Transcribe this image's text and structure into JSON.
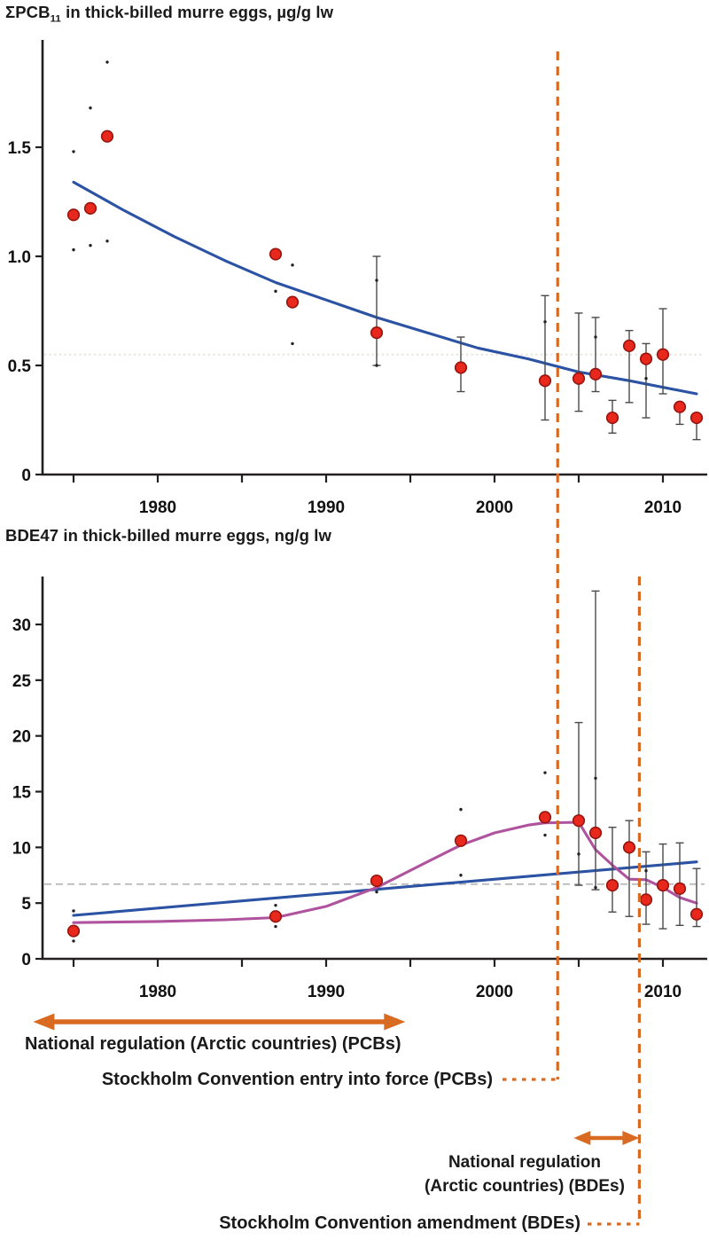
{
  "figure_titles": {
    "top": {
      "prefix": "ΣPCB",
      "subscript": "11",
      "suffix": " in thick-billed murre eggs, µg/g lw"
    },
    "bottom": "BDE47 in thick-billed murre eggs, ng/g lw"
  },
  "colors": {
    "point_fill": "#e8271d",
    "point_stroke": "#96150e",
    "trend_blue": "#2b52a3",
    "loess_magenta": "#b0539e",
    "regulatory_orange": "#d96a22",
    "error_bar": "#4a4a4a",
    "minor_dot": "#222222",
    "axis": "#231f20",
    "tick_text": "#111111",
    "ref_dotted_top": "#e7e3d9",
    "ref_dashed_bottom": "#b5b5b5"
  },
  "chart_data": [
    {
      "type": "scatter",
      "title": "ΣPCB11 in thick-billed murre eggs, µg/g lw",
      "xlabel": "",
      "ylabel": "",
      "x_range": [
        1973,
        2013.7
      ],
      "ylim": [
        0,
        1.95
      ],
      "x_ticks": [
        1975,
        1980,
        1985,
        1990,
        1995,
        2000,
        2005,
        2010
      ],
      "x_tick_labels": [
        "",
        "1980",
        "",
        "1990",
        "",
        "2000",
        "",
        "2010"
      ],
      "y_ticks": [
        0,
        0.5,
        1.0,
        1.5
      ],
      "y_tick_labels": [
        "0",
        "0.5",
        "1.0",
        "1.5"
      ],
      "reference_line": {
        "value": 0.55,
        "style": "dotted"
      },
      "series": [
        {
          "name": "annual mean concentration",
          "style": "red-point",
          "points": [
            [
              1975,
              1.19
            ],
            [
              1976,
              1.22
            ],
            [
              1977,
              1.55
            ],
            [
              1987,
              1.01
            ],
            [
              1988,
              0.79
            ],
            [
              1993,
              0.65
            ],
            [
              1998,
              0.49
            ],
            [
              2003,
              0.43
            ],
            [
              2005,
              0.44
            ],
            [
              2006,
              0.46
            ],
            [
              2007,
              0.26
            ],
            [
              2008,
              0.59
            ],
            [
              2009,
              0.53
            ],
            [
              2010,
              0.55
            ],
            [
              2011,
              0.31
            ],
            [
              2012,
              0.26
            ]
          ]
        },
        {
          "name": "individual samples",
          "style": "small-dot",
          "points": [
            [
              1975,
              1.48
            ],
            [
              1975,
              1.03
            ],
            [
              1976,
              1.68
            ],
            [
              1976,
              1.05
            ],
            [
              1977,
              1.89
            ],
            [
              1977,
              1.07
            ],
            [
              1987,
              0.84
            ],
            [
              1988,
              0.96
            ],
            [
              1988,
              0.6
            ],
            [
              1993,
              0.89
            ],
            [
              1993,
              0.5
            ],
            [
              2003,
              0.7
            ],
            [
              2006,
              0.63
            ],
            [
              2009,
              0.44
            ]
          ]
        },
        {
          "name": "exponential decline trend",
          "style": "blue-line",
          "points": [
            [
              1975,
              1.34
            ],
            [
              1978,
              1.21
            ],
            [
              1981,
              1.09
            ],
            [
              1984,
              0.98
            ],
            [
              1987,
              0.88
            ],
            [
              1990,
              0.8
            ],
            [
              1993,
              0.72
            ],
            [
              1996,
              0.65
            ],
            [
              1999,
              0.58
            ],
            [
              2002,
              0.53
            ],
            [
              2005,
              0.47
            ],
            [
              2008,
              0.43
            ],
            [
              2012,
              0.37
            ]
          ]
        }
      ],
      "error_bars": [
        [
          1993,
          0.5,
          1.0
        ],
        [
          1998,
          0.38,
          0.63
        ],
        [
          2003,
          0.25,
          0.82
        ],
        [
          2005,
          0.29,
          0.74
        ],
        [
          2006,
          0.38,
          0.72
        ],
        [
          2007,
          0.19,
          0.34
        ],
        [
          2008,
          0.33,
          0.66
        ],
        [
          2009,
          0.26,
          0.6
        ],
        [
          2010,
          0.37,
          0.76
        ],
        [
          2011,
          0.23,
          0.33
        ],
        [
          2012,
          0.16,
          0.28
        ]
      ]
    },
    {
      "type": "scatter",
      "title": "BDE47 in thick-billed murre eggs, ng/g lw",
      "xlabel": "",
      "ylabel": "",
      "x_range": [
        1973,
        2013.7
      ],
      "ylim": [
        0,
        34
      ],
      "x_ticks": [
        1975,
        1980,
        1985,
        1990,
        1995,
        2000,
        2005,
        2010
      ],
      "x_tick_labels": [
        "",
        "1980",
        "",
        "1990",
        "",
        "2000",
        "",
        "2010"
      ],
      "y_ticks": [
        0,
        5,
        10,
        15,
        20,
        25,
        30
      ],
      "y_tick_labels": [
        "0",
        "5",
        "10",
        "15",
        "20",
        "25",
        "30"
      ],
      "reference_line": {
        "value": 6.7,
        "style": "dashed"
      },
      "series": [
        {
          "name": "annual mean concentration",
          "style": "red-point",
          "points": [
            [
              1975,
              2.5
            ],
            [
              1987,
              3.8
            ],
            [
              1993,
              7.0
            ],
            [
              1998,
              10.6
            ],
            [
              2003,
              12.7
            ],
            [
              2005,
              12.4
            ],
            [
              2006,
              11.3
            ],
            [
              2007,
              6.6
            ],
            [
              2008,
              10.0
            ],
            [
              2009,
              5.3
            ],
            [
              2010,
              6.6
            ],
            [
              2011,
              6.3
            ],
            [
              2012,
              4.0
            ]
          ]
        },
        {
          "name": "individual samples",
          "style": "small-dot",
          "points": [
            [
              1975,
              4.3
            ],
            [
              1975,
              1.6
            ],
            [
              1987,
              4.8
            ],
            [
              1987,
              2.9
            ],
            [
              1993,
              6.0
            ],
            [
              1998,
              13.4
            ],
            [
              1998,
              7.5
            ],
            [
              2003,
              16.7
            ],
            [
              2003,
              11.1
            ],
            [
              2005,
              9.4
            ],
            [
              2006,
              16.2
            ],
            [
              2006,
              6.4
            ],
            [
              2009,
              7.9
            ]
          ]
        },
        {
          "name": "linear trend",
          "style": "blue-line",
          "points": [
            [
              1975,
              3.9
            ],
            [
              2012,
              8.7
            ]
          ]
        },
        {
          "name": "loess smoother",
          "style": "magenta-line",
          "points": [
            [
              1975,
              3.25
            ],
            [
              1980,
              3.35
            ],
            [
              1984,
              3.5
            ],
            [
              1987,
              3.7
            ],
            [
              1990,
              4.7
            ],
            [
              1993,
              6.4
            ],
            [
              1996,
              8.7
            ],
            [
              1998,
              10.2
            ],
            [
              2000,
              11.3
            ],
            [
              2002,
              12.0
            ],
            [
              2003,
              12.2
            ],
            [
              2005,
              12.25
            ],
            [
              2006,
              9.8
            ],
            [
              2007,
              8.4
            ],
            [
              2008,
              7.15
            ],
            [
              2009,
              7.1
            ],
            [
              2010,
              6.4
            ],
            [
              2011,
              5.5
            ],
            [
              2012,
              5.0
            ]
          ]
        }
      ],
      "error_bars": [
        [
          2005,
          6.6,
          21.2
        ],
        [
          2006,
          6.2,
          33.0
        ],
        [
          2007,
          4.2,
          11.8
        ],
        [
          2008,
          3.8,
          12.4
        ],
        [
          2009,
          3.1,
          9.6
        ],
        [
          2010,
          2.7,
          10.3
        ],
        [
          2011,
          3.0,
          10.4
        ],
        [
          2012,
          2.9,
          8.1
        ]
      ]
    }
  ],
  "annotations": {
    "pcb_regulation": {
      "label": "National regulation (Arctic countries) (PCBs)",
      "year_start": 1972.6,
      "year_end": 1994.7
    },
    "pcb_convention": {
      "label": "Stockholm Convention entry into force (PCBs)",
      "year": 2003.75
    },
    "bde_regulation": {
      "label_line1": "National regulation",
      "label_line2": "(Arctic countries) (BDEs)",
      "year_start": 2004.7,
      "year_end": 2008.6
    },
    "bde_amendment": {
      "label": "Stockholm Convention amendment (BDEs)",
      "year": 2008.6
    }
  }
}
